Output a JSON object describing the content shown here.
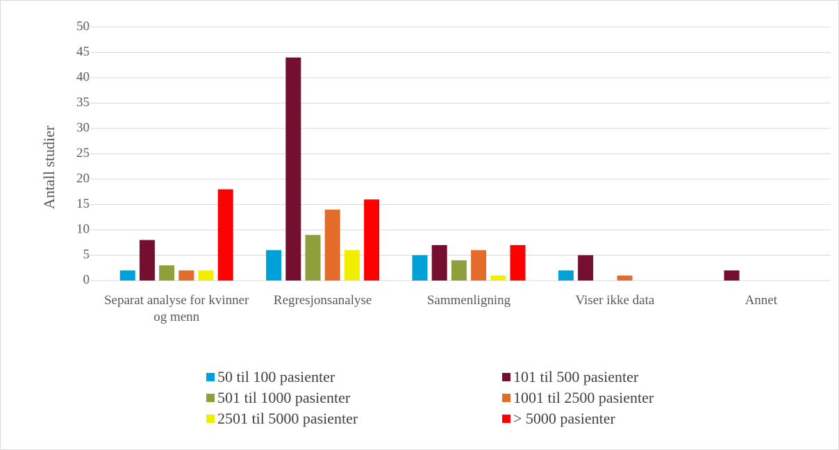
{
  "chart_data": {
    "type": "bar",
    "y_label": "Antall studier",
    "categories": [
      "Separat analyse for kvinner og menn",
      "Regresjonsanalyse",
      "Sammenligning",
      "Viser ikke data",
      "Annet"
    ],
    "series": [
      {
        "name": "50 til 100 pasienter",
        "color": "#00a0d8",
        "values": [
          2,
          6,
          5,
          2,
          0
        ]
      },
      {
        "name": "101 til 500 pasienter",
        "color": "#740f30",
        "values": [
          8,
          44,
          7,
          5,
          2
        ]
      },
      {
        "name": "501 til 1000 pasienter",
        "color": "#8e9f3c",
        "values": [
          3,
          9,
          4,
          0,
          0
        ]
      },
      {
        "name": "1001 til 2500 pasienter",
        "color": "#e46c2b",
        "values": [
          2,
          14,
          6,
          1,
          0
        ]
      },
      {
        "name": "2501 til 5000 pasienter",
        "color": "#f2ee00",
        "values": [
          2,
          6,
          1,
          0,
          0
        ]
      },
      {
        "name": "> 5000 pasienter",
        "color": "#ff0000",
        "values": [
          18,
          16,
          7,
          0,
          0
        ]
      }
    ],
    "ylim": [
      0,
      50
    ],
    "yticks": [
      0,
      5,
      10,
      15,
      20,
      25,
      30,
      35,
      40,
      45,
      50
    ],
    "grid": true,
    "legend": "bottom"
  }
}
